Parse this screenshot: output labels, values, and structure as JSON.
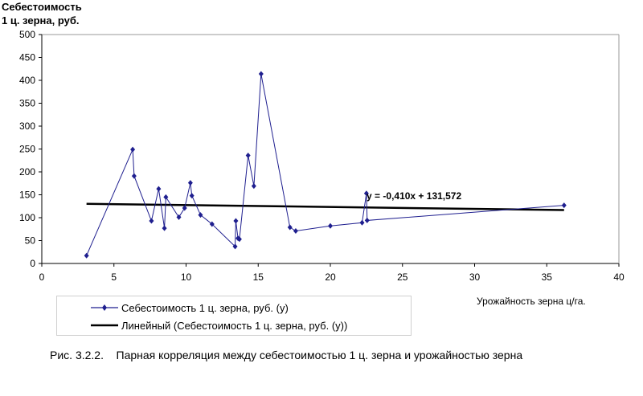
{
  "chart_data": {
    "type": "scatter",
    "ylabel_lines": [
      "Себестоимость",
      "1 ц. зерна, руб."
    ],
    "xlabel": "Урожайность зерна ц/га.",
    "xlim": [
      0,
      40
    ],
    "ylim": [
      0,
      500
    ],
    "x_ticks": [
      "0",
      "5",
      "10",
      "15",
      "20",
      "25",
      "30",
      "35",
      "40"
    ],
    "y_ticks": [
      "0",
      "50",
      "100",
      "150",
      "200",
      "250",
      "300",
      "350",
      "400",
      "450",
      "500"
    ],
    "grid": false,
    "legend_placement": "bottom-left",
    "series": [
      {
        "name": "Себестоимость 1 ц. зерна, руб. (y)",
        "style": "line-with-diamond-markers",
        "color": "#1f1f8f",
        "x": [
          3.1,
          6.3,
          6.4,
          7.6,
          8.1,
          8.5,
          8.6,
          9.5,
          9.9,
          10.3,
          10.4,
          11.0,
          11.8,
          13.4,
          13.45,
          13.6,
          13.7,
          14.3,
          14.7,
          15.2,
          17.2,
          17.6,
          20.0,
          22.2,
          22.5,
          22.55,
          36.2
        ],
        "y": [
          17,
          249,
          191,
          93,
          163,
          77,
          145,
          101,
          121,
          176,
          148,
          106,
          86,
          37,
          93,
          55,
          53,
          236,
          169,
          414,
          79,
          71,
          82,
          89,
          153,
          94,
          127
        ]
      },
      {
        "name": "Линейный (Себестоимость 1 ц. зерна, руб. (y))",
        "style": "trendline",
        "color": "#000000",
        "x": [
          3.1,
          36.2
        ],
        "y": [
          130.3,
          116.7
        ]
      }
    ],
    "annotation": "y = -0,410x + 131,572"
  },
  "caption": "Рис. 3.2.2.    Парная корреляция между себестоимостью 1 ц. зерна и урожайностью зерна"
}
